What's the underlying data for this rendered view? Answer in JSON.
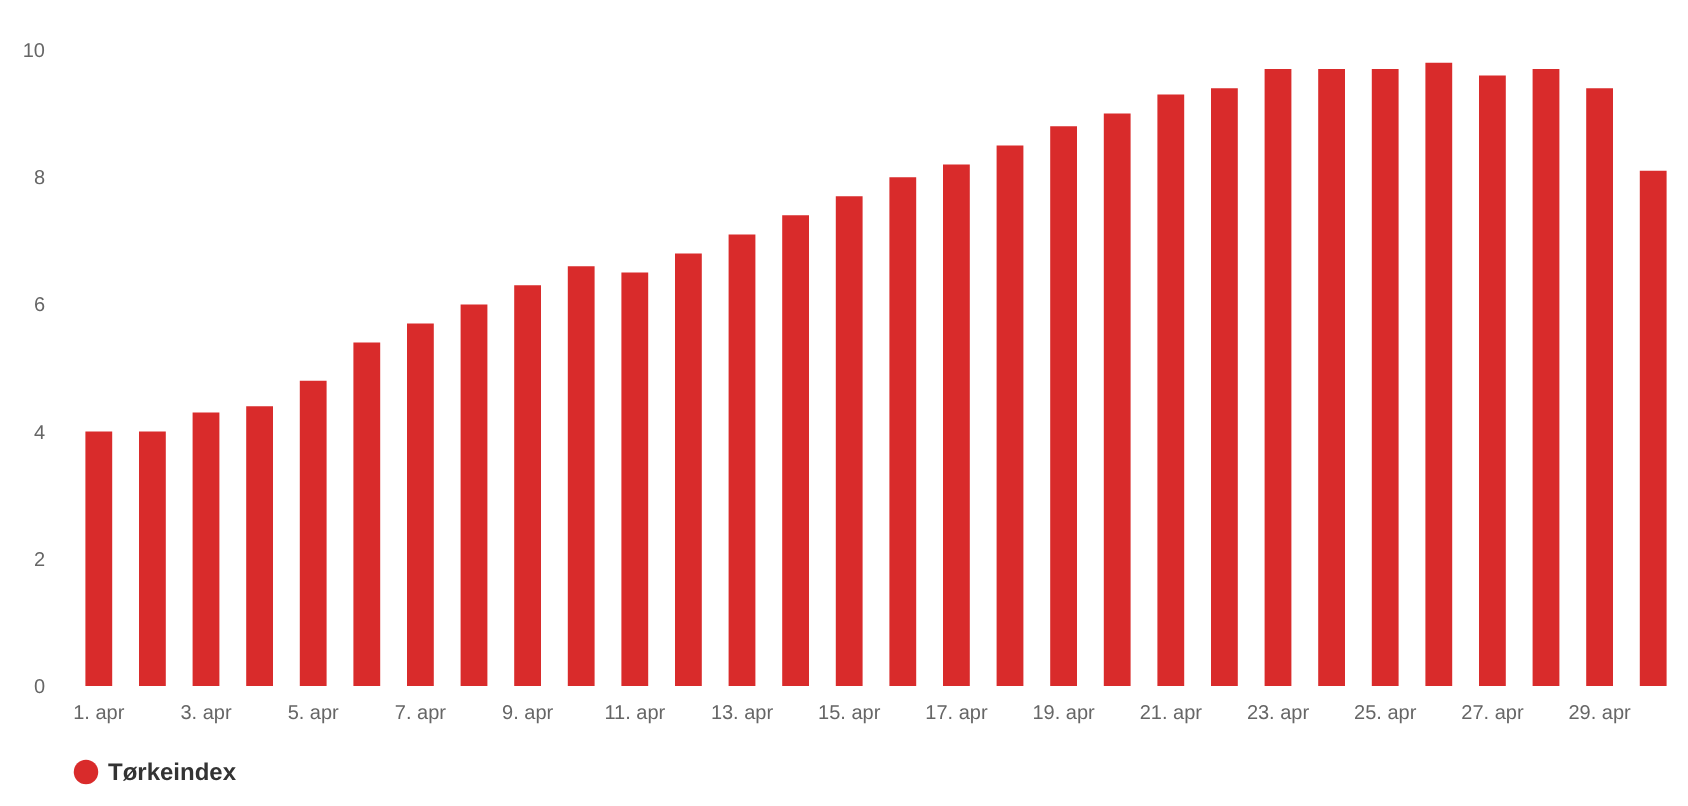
{
  "chart_data": {
    "type": "bar",
    "categories": [
      "1. apr",
      null,
      "3. apr",
      null,
      "5. apr",
      null,
      "7. apr",
      null,
      "9. apr",
      null,
      "11. apr",
      null,
      "13. apr",
      null,
      "15. apr",
      null,
      "17. apr",
      null,
      "19. apr",
      null,
      "21. apr",
      null,
      "23. apr",
      null,
      "25. apr",
      null,
      "27. apr",
      null,
      "29. apr",
      null
    ],
    "series": [
      {
        "name": "Tørkeindex",
        "color": "#d92b2b",
        "values": [
          4.0,
          4.0,
          4.3,
          4.4,
          4.8,
          5.4,
          5.7,
          6.0,
          6.3,
          6.6,
          6.5,
          6.8,
          7.1,
          7.4,
          7.7,
          8.0,
          8.2,
          8.5,
          8.8,
          9.0,
          9.3,
          9.4,
          9.7,
          9.7,
          9.7,
          9.8,
          9.6,
          9.7,
          9.4,
          8.1
        ]
      }
    ],
    "ylim": [
      0,
      10
    ],
    "yticks": [
      0,
      2,
      4,
      6,
      8,
      10
    ],
    "grid": false,
    "legend": "bottom",
    "marker": "circle"
  }
}
